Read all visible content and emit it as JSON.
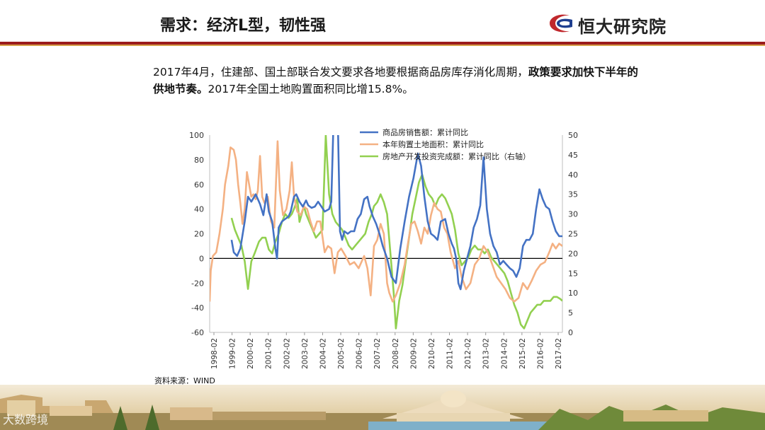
{
  "header": {
    "title": "需求：经济L型，韧性强",
    "brand": "恒大研究院"
  },
  "summary": {
    "text_normal_1": "2017年4月，住建部、国土部联合发文要求各地要根据商品房库存消化周期，",
    "text_bold": "政策要求加快下半年的供地节奏。",
    "text_normal_2": "2017年全国土地购置面积同比增15.8%。"
  },
  "source": "资料来源：WIND",
  "footer": {
    "watermark": "大数跨境"
  },
  "colors": {
    "blue": "#4472c4",
    "orange": "#f4b183",
    "green": "#92d050",
    "header_red": "#9b1c1c",
    "header_gold": "#d7a24a"
  },
  "chart_data": {
    "type": "line",
    "y_left": {
      "range": [
        -60,
        100
      ],
      "ticks": [
        100,
        80,
        60,
        40,
        20,
        0,
        -20,
        -40,
        -60
      ]
    },
    "y_right": {
      "range": [
        0,
        50
      ],
      "ticks": [
        50,
        45,
        40,
        35,
        30,
        25,
        20,
        15,
        10,
        5,
        0
      ]
    },
    "x_ticks": [
      "1998-02",
      "1999-02",
      "2000-02",
      "2001-02",
      "2002-02",
      "2003-02",
      "2004-02",
      "2005-02",
      "2006-02",
      "2007-02",
      "2008-02",
      "2009-02",
      "2010-02",
      "2011-02",
      "2012-02",
      "2013-02",
      "2014-02",
      "2015-02",
      "2016-02",
      "2017-02"
    ],
    "legend_placement": "top-right",
    "series": [
      {
        "name": "商品房销售额：累计同比",
        "axis": "left",
        "points": [
          [
            2.0,
            15
          ],
          [
            2.2,
            5
          ],
          [
            2.5,
            2
          ],
          [
            2.8,
            8
          ],
          [
            3.2,
            30
          ],
          [
            3.5,
            50
          ],
          [
            3.8,
            46
          ],
          [
            4.2,
            52
          ],
          [
            4.6,
            44
          ],
          [
            4.9,
            35
          ],
          [
            5.2,
            52
          ],
          [
            5.4,
            38
          ],
          [
            5.7,
            30
          ],
          [
            6.0,
            8
          ],
          [
            6.15,
            0
          ],
          [
            6.3,
            25
          ],
          [
            6.6,
            30
          ],
          [
            6.9,
            32
          ],
          [
            7.2,
            34
          ],
          [
            7.4,
            38
          ],
          [
            7.7,
            50
          ],
          [
            7.9,
            52
          ],
          [
            8.2,
            46
          ],
          [
            8.5,
            42
          ],
          [
            8.8,
            47
          ],
          [
            9.0,
            43
          ],
          [
            9.3,
            41
          ],
          [
            9.6,
            42
          ],
          [
            9.9,
            46
          ],
          [
            10.2,
            42
          ],
          [
            10.5,
            38
          ],
          [
            10.9,
            40
          ],
          [
            11.1,
            46
          ],
          [
            11.3,
            110
          ],
          [
            11.5,
            110
          ],
          [
            11.7,
            110
          ],
          [
            11.9,
            22
          ],
          [
            12.1,
            15
          ],
          [
            12.3,
            22
          ],
          [
            12.6,
            20
          ],
          [
            12.9,
            22
          ],
          [
            13.2,
            22
          ],
          [
            13.5,
            32
          ],
          [
            13.8,
            36
          ],
          [
            14.1,
            48
          ],
          [
            14.4,
            50
          ],
          [
            14.6,
            42
          ],
          [
            14.9,
            34
          ],
          [
            15.2,
            28
          ],
          [
            15.5,
            20
          ],
          [
            15.8,
            10
          ],
          [
            16.2,
            0
          ],
          [
            16.6,
            -15
          ],
          [
            17.0,
            -20
          ],
          [
            17.4,
            8
          ],
          [
            17.8,
            30
          ],
          [
            18.2,
            50
          ],
          [
            18.6,
            65
          ],
          [
            19.0,
            85
          ],
          [
            19.3,
            75
          ],
          [
            19.6,
            50
          ],
          [
            19.9,
            30
          ],
          [
            20.2,
            20
          ],
          [
            20.5,
            18
          ],
          [
            20.8,
            15
          ],
          [
            21.1,
            30
          ],
          [
            21.5,
            32
          ],
          [
            21.8,
            20
          ],
          [
            22.1,
            12
          ],
          [
            22.3,
            8
          ],
          [
            22.5,
            0
          ],
          [
            22.7,
            -20
          ],
          [
            22.9,
            -25
          ],
          [
            23.2,
            -10
          ],
          [
            23.5,
            0
          ],
          [
            23.8,
            10
          ],
          [
            24.1,
            25
          ],
          [
            24.4,
            32
          ],
          [
            24.7,
            43
          ],
          [
            25.0,
            82
          ],
          [
            25.3,
            40
          ],
          [
            25.6,
            20
          ],
          [
            25.9,
            10
          ],
          [
            26.2,
            5
          ],
          [
            26.5,
            -5
          ],
          [
            26.8,
            -2
          ],
          [
            27.1,
            -5
          ],
          [
            27.4,
            -8
          ],
          [
            27.7,
            -10
          ],
          [
            28.0,
            -15
          ],
          [
            28.3,
            -8
          ],
          [
            28.6,
            10
          ],
          [
            28.9,
            15
          ],
          [
            29.2,
            15
          ],
          [
            29.5,
            20
          ],
          [
            29.8,
            40
          ],
          [
            30.1,
            56
          ],
          [
            30.4,
            48
          ],
          [
            30.7,
            42
          ],
          [
            31.0,
            40
          ],
          [
            31.3,
            30
          ],
          [
            31.6,
            22
          ],
          [
            31.9,
            18
          ],
          [
            32.2,
            18
          ]
        ]
      },
      {
        "name": "本年购置土地面积：累计同比",
        "axis": "left",
        "points": [
          [
            0,
            -35
          ],
          [
            0.1,
            -10
          ],
          [
            0.3,
            2
          ],
          [
            0.6,
            5
          ],
          [
            0.9,
            20
          ],
          [
            1.2,
            40
          ],
          [
            1.4,
            60
          ],
          [
            1.7,
            75
          ],
          [
            1.9,
            90
          ],
          [
            2.2,
            88
          ],
          [
            2.4,
            80
          ],
          [
            2.6,
            60
          ],
          [
            2.8,
            45
          ],
          [
            3.0,
            28
          ],
          [
            3.2,
            40
          ],
          [
            3.4,
            70
          ],
          [
            3.6,
            60
          ],
          [
            3.8,
            50
          ],
          [
            4.0,
            52
          ],
          [
            4.2,
            48
          ],
          [
            4.4,
            55
          ],
          [
            4.6,
            83
          ],
          [
            4.8,
            50
          ],
          [
            5.0,
            45
          ],
          [
            5.3,
            50
          ],
          [
            5.6,
            30
          ],
          [
            5.9,
            25
          ],
          [
            6.2,
            95
          ],
          [
            6.4,
            55
          ],
          [
            6.7,
            35
          ],
          [
            7.0,
            40
          ],
          [
            7.3,
            55
          ],
          [
            7.5,
            78
          ],
          [
            7.7,
            50
          ],
          [
            8.0,
            38
          ],
          [
            8.3,
            35
          ],
          [
            8.6,
            42
          ],
          [
            8.9,
            40
          ],
          [
            9.2,
            30
          ],
          [
            9.5,
            22
          ],
          [
            9.8,
            30
          ],
          [
            10.1,
            30
          ],
          [
            10.5,
            5
          ],
          [
            10.8,
            10
          ],
          [
            11.1,
            8
          ],
          [
            11.4,
            -12
          ],
          [
            11.7,
            5
          ],
          [
            12.0,
            8
          ],
          [
            12.4,
            2
          ],
          [
            12.8,
            -5
          ],
          [
            13.2,
            -3
          ],
          [
            13.6,
            -8
          ],
          [
            13.9,
            -2
          ],
          [
            14.1,
            2
          ],
          [
            14.4,
            -8
          ],
          [
            14.7,
            -30
          ],
          [
            15.0,
            10
          ],
          [
            15.3,
            15
          ],
          [
            15.6,
            28
          ],
          [
            15.9,
            20
          ],
          [
            16.2,
            -20
          ],
          [
            16.4,
            -28
          ],
          [
            16.7,
            -35
          ],
          [
            17.0,
            -30
          ],
          [
            17.4,
            -20
          ],
          [
            17.8,
            -5
          ],
          [
            18.1,
            12
          ],
          [
            18.4,
            28
          ],
          [
            18.7,
            30
          ],
          [
            19.0,
            22
          ],
          [
            19.3,
            12
          ],
          [
            19.6,
            25
          ],
          [
            19.9,
            20
          ],
          [
            20.2,
            35
          ],
          [
            20.5,
            45
          ],
          [
            20.8,
            40
          ],
          [
            21.1,
            38
          ],
          [
            21.4,
            25
          ],
          [
            21.7,
            20
          ],
          [
            22.0,
            5
          ],
          [
            22.4,
            -8
          ],
          [
            22.7,
            -2
          ],
          [
            23.0,
            -15
          ],
          [
            23.4,
            -25
          ],
          [
            23.8,
            -20
          ],
          [
            24.2,
            -5
          ],
          [
            24.6,
            0
          ],
          [
            25.0,
            10
          ],
          [
            25.4,
            5
          ],
          [
            25.8,
            -5
          ],
          [
            26.2,
            -15
          ],
          [
            26.6,
            -20
          ],
          [
            27.0,
            -25
          ],
          [
            27.4,
            -32
          ],
          [
            27.8,
            -35
          ],
          [
            28.2,
            -32
          ],
          [
            28.6,
            -20
          ],
          [
            29.0,
            -25
          ],
          [
            29.4,
            -18
          ],
          [
            29.8,
            -10
          ],
          [
            30.2,
            -5
          ],
          [
            30.6,
            -3
          ],
          [
            31.0,
            5
          ],
          [
            31.3,
            12
          ],
          [
            31.6,
            8
          ],
          [
            31.9,
            12
          ],
          [
            32.2,
            10
          ]
        ]
      },
      {
        "name": "房地产开发投资完成额：累计同比（右轴）",
        "axis": "right",
        "points": [
          [
            2.0,
            29
          ],
          [
            2.3,
            26
          ],
          [
            2.6,
            24
          ],
          [
            2.9,
            22
          ],
          [
            3.2,
            18
          ],
          [
            3.5,
            11
          ],
          [
            3.8,
            18
          ],
          [
            4.1,
            20
          ],
          [
            4.5,
            23
          ],
          [
            4.8,
            24
          ],
          [
            5.1,
            24
          ],
          [
            5.4,
            21
          ],
          [
            5.7,
            20
          ],
          [
            6.0,
            23
          ],
          [
            6.3,
            25
          ],
          [
            6.6,
            28
          ],
          [
            6.9,
            30
          ],
          [
            7.2,
            29
          ],
          [
            7.5,
            30
          ],
          [
            7.8,
            32
          ],
          [
            8.0,
            34
          ],
          [
            8.2,
            28
          ],
          [
            8.4,
            30
          ],
          [
            8.6,
            32
          ],
          [
            8.8,
            30
          ],
          [
            9.1,
            28
          ],
          [
            9.4,
            26
          ],
          [
            9.7,
            24
          ],
          [
            10.0,
            25
          ],
          [
            10.3,
            26
          ],
          [
            10.6,
            50
          ],
          [
            10.9,
            35
          ],
          [
            11.2,
            30
          ],
          [
            11.5,
            28
          ],
          [
            11.8,
            27
          ],
          [
            12.1,
            26
          ],
          [
            12.4,
            24
          ],
          [
            12.7,
            22
          ],
          [
            13.0,
            21
          ],
          [
            13.3,
            22
          ],
          [
            13.6,
            23
          ],
          [
            13.9,
            24
          ],
          [
            14.2,
            25
          ],
          [
            14.5,
            28
          ],
          [
            14.8,
            30
          ],
          [
            15.0,
            32
          ],
          [
            15.3,
            33
          ],
          [
            15.6,
            35
          ],
          [
            15.9,
            33
          ],
          [
            16.2,
            30
          ],
          [
            16.5,
            20
          ],
          [
            16.8,
            10
          ],
          [
            17.0,
            1
          ],
          [
            17.3,
            8
          ],
          [
            17.6,
            12
          ],
          [
            17.9,
            18
          ],
          [
            18.2,
            24
          ],
          [
            18.5,
            30
          ],
          [
            18.8,
            34
          ],
          [
            19.1,
            38
          ],
          [
            19.4,
            40
          ],
          [
            19.7,
            37
          ],
          [
            20.0,
            35
          ],
          [
            20.3,
            34
          ],
          [
            20.6,
            32
          ],
          [
            20.9,
            34
          ],
          [
            21.2,
            35
          ],
          [
            21.5,
            34
          ],
          [
            21.8,
            32
          ],
          [
            22.1,
            30
          ],
          [
            22.4,
            26
          ],
          [
            22.7,
            20
          ],
          [
            23.0,
            17
          ],
          [
            23.3,
            18
          ],
          [
            23.6,
            19
          ],
          [
            23.9,
            21
          ],
          [
            24.2,
            22
          ],
          [
            24.5,
            21
          ],
          [
            24.8,
            21
          ],
          [
            25.1,
            20
          ],
          [
            25.4,
            21
          ],
          [
            25.7,
            19
          ],
          [
            26.0,
            18
          ],
          [
            26.3,
            17
          ],
          [
            26.6,
            16
          ],
          [
            26.9,
            15
          ],
          [
            27.2,
            13
          ],
          [
            27.5,
            10
          ],
          [
            27.8,
            7
          ],
          [
            28.1,
            5
          ],
          [
            28.4,
            2
          ],
          [
            28.7,
            1
          ],
          [
            29.0,
            3
          ],
          [
            29.3,
            5
          ],
          [
            29.6,
            6
          ],
          [
            29.9,
            7
          ],
          [
            30.2,
            7
          ],
          [
            30.5,
            8
          ],
          [
            30.8,
            8
          ],
          [
            31.1,
            8
          ],
          [
            31.4,
            9
          ],
          [
            31.7,
            9
          ],
          [
            32.0,
            8.5
          ],
          [
            32.2,
            8
          ]
        ]
      }
    ]
  }
}
